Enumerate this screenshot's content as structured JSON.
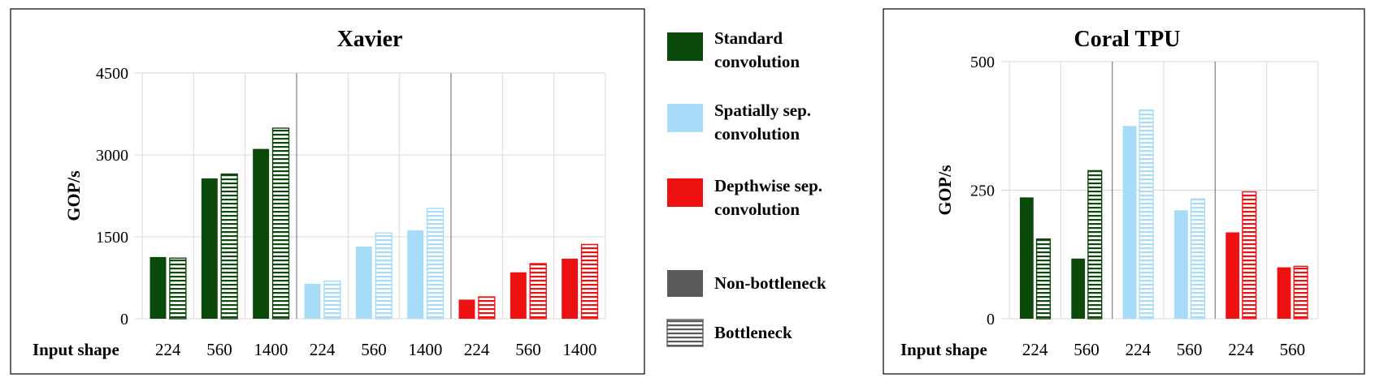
{
  "legend": {
    "items": [
      {
        "lines": [
          "Standard",
          "convolution"
        ],
        "fill": "#0b4a0b",
        "pattern": "solid"
      },
      {
        "lines": [
          "Spatially sep.",
          "convolution"
        ],
        "fill": "#a6dcf8",
        "pattern": "solid"
      },
      {
        "lines": [
          "Depthwise sep.",
          "convolution"
        ],
        "fill": "#ee1111",
        "pattern": "solid"
      },
      {
        "lines": [
          "Non-bottleneck"
        ],
        "fill": "#5a5a5a",
        "pattern": "solid"
      },
      {
        "lines": [
          "Bottleneck"
        ],
        "fill": "#5a5a5a",
        "pattern": "striped"
      }
    ]
  },
  "chart_data": [
    {
      "type": "bar",
      "title": "Xavier",
      "ylabel": "GOP/s",
      "xlabel": "Input shape",
      "ylim": [
        0,
        4500
      ],
      "yticks": [
        0,
        1500,
        3000,
        4500
      ],
      "categories": [
        "224",
        "560",
        "1400",
        "224",
        "560",
        "1400",
        "224",
        "560",
        "1400"
      ],
      "category_groups": [
        "Standard convolution",
        "Standard convolution",
        "Standard convolution",
        "Spatially sep. convolution",
        "Spatially sep. convolution",
        "Spatially sep. convolution",
        "Depthwise sep. convolution",
        "Depthwise sep. convolution",
        "Depthwise sep. convolution"
      ],
      "series": [
        {
          "name": "Non-bottleneck",
          "values": [
            1130,
            2570,
            3110,
            640,
            1320,
            1620,
            350,
            850,
            1100
          ]
        },
        {
          "name": "Bottleneck",
          "values": [
            1110,
            2650,
            3490,
            690,
            1570,
            2020,
            400,
            1010,
            1360
          ]
        }
      ],
      "colors": [
        "#0b4a0b",
        "#0b4a0b",
        "#0b4a0b",
        "#a6dcf8",
        "#a6dcf8",
        "#a6dcf8",
        "#ee1111",
        "#ee1111",
        "#ee1111"
      ],
      "grid": true
    },
    {
      "type": "bar",
      "title": "Coral TPU",
      "ylabel": "GOP/s",
      "xlabel": "Input shape",
      "ylim": [
        0,
        500
      ],
      "yticks": [
        0,
        250,
        500
      ],
      "categories": [
        "224",
        "560",
        "224",
        "560",
        "224",
        "560"
      ],
      "category_groups": [
        "Standard convolution",
        "Standard convolution",
        "Spatially sep. convolution",
        "Spatially sep. convolution",
        "Depthwise sep. convolution",
        "Depthwise sep. convolution"
      ],
      "series": [
        {
          "name": "Non-bottleneck",
          "values": [
            236,
            117,
            375,
            211,
            168,
            100
          ]
        },
        {
          "name": "Bottleneck",
          "values": [
            155,
            288,
            406,
            233,
            247,
            102
          ]
        }
      ],
      "colors": [
        "#0b4a0b",
        "#0b4a0b",
        "#a6dcf8",
        "#a6dcf8",
        "#ee1111",
        "#ee1111"
      ],
      "grid": true
    }
  ]
}
